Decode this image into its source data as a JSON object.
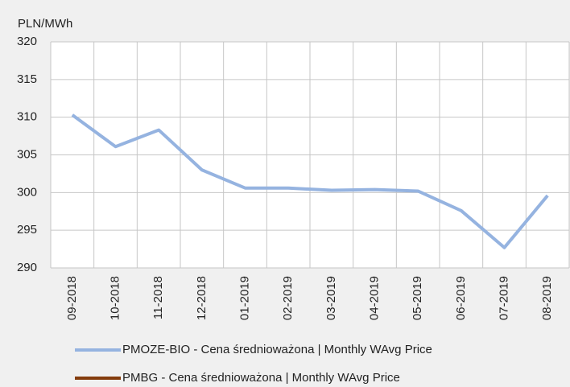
{
  "chart_data": {
    "type": "line",
    "y_label": "PLN/MWh",
    "categories": [
      "09-2018",
      "10-2018",
      "11-2018",
      "12-2018",
      "01-2019",
      "02-2019",
      "03-2019",
      "04-2019",
      "05-2019",
      "06-2019",
      "07-2019",
      "08-2019"
    ],
    "series": [
      {
        "name": "PMOZE-BIO  -  Cena średnioważona | Monthly WAvg Price",
        "color": "#95b3e0",
        "values": [
          310.3,
          306.1,
          308.3,
          303.0,
          300.6,
          300.6,
          300.3,
          300.4,
          300.2,
          297.6,
          292.7,
          299.6
        ]
      },
      {
        "name": "PMBG  -  Cena średnioważona | Monthly WAvg Price",
        "color": "#843c0c",
        "values": [
          null,
          null,
          null,
          null,
          null,
          null,
          null,
          null,
          null,
          null,
          null,
          null
        ]
      }
    ],
    "ylim": [
      290,
      320
    ],
    "yticks": [
      290,
      295,
      300,
      305,
      310,
      315,
      320
    ],
    "grid": true
  }
}
